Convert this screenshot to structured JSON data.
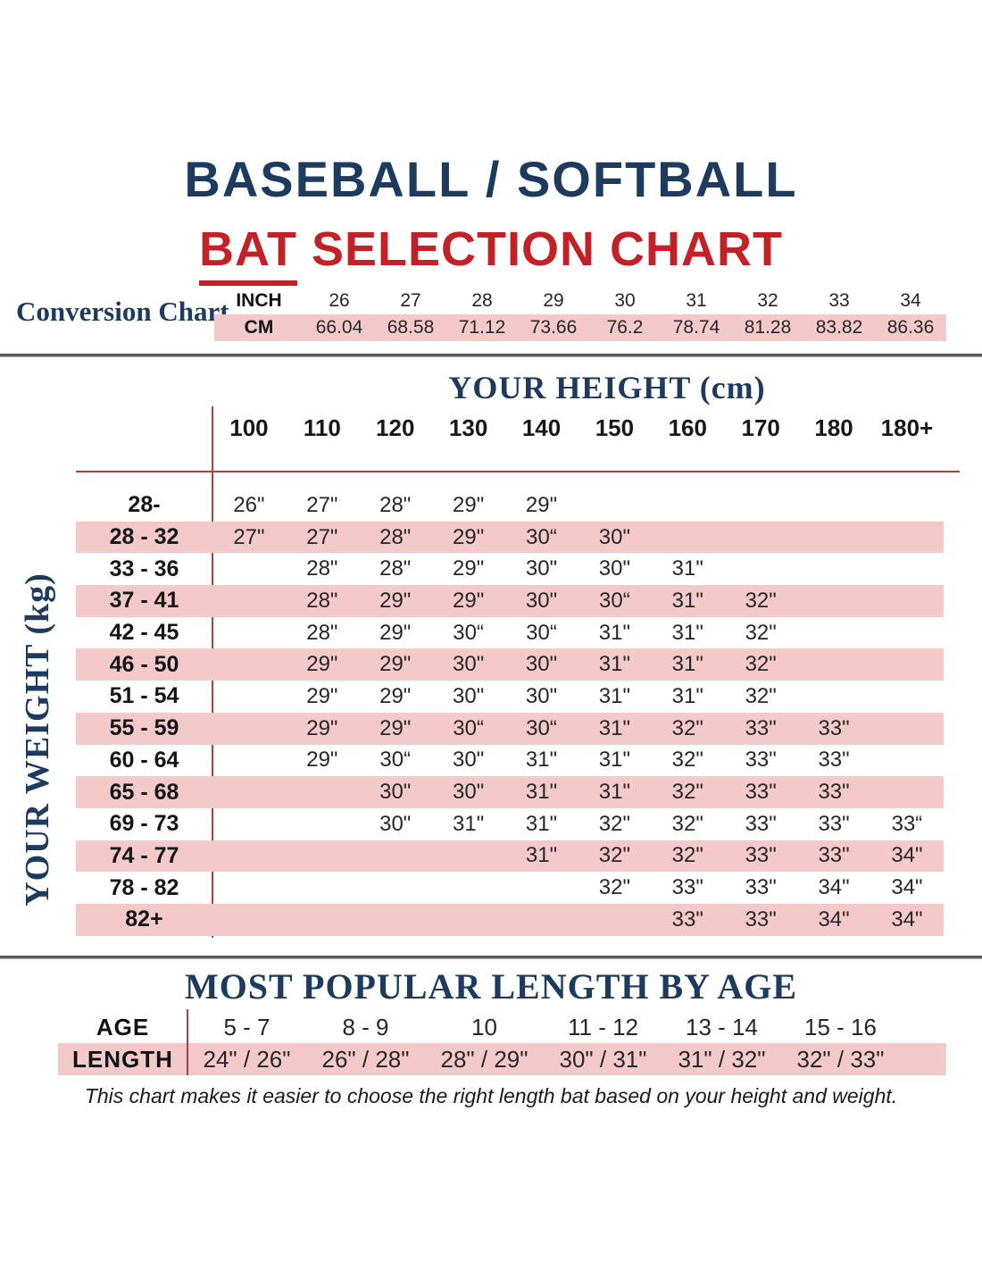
{
  "title": {
    "line1": "BASEBALL / SOFTBALL",
    "bat": "BAT",
    "rest": " SELECTION CHART"
  },
  "footer": "This chart makes it easier to choose the right length bat based on your height and weight.",
  "colors": {
    "navy": "#1d3b5e",
    "red": "#c42127",
    "pink": "#f3c9c9",
    "line_red": "#a84340"
  },
  "chart_data": [
    {
      "type": "table",
      "title": "Conversion Chart",
      "inch_label": "INCH",
      "cm_label": "CM",
      "inches": [
        "26",
        "27",
        "28",
        "29",
        "30",
        "31",
        "32",
        "33",
        "34"
      ],
      "cms": [
        "66.04",
        "68.58",
        "71.12",
        "73.66",
        "76.2",
        "78.74",
        "81.28",
        "83.82",
        "86.36"
      ]
    },
    {
      "type": "table",
      "x_axis_title": "YOUR HEIGHT (cm)",
      "y_axis_title": "YOUR WEIGHT (kg)",
      "columns": [
        "100",
        "110",
        "120",
        "130",
        "140",
        "150",
        "160",
        "170",
        "180",
        "180+"
      ],
      "rows": [
        {
          "label": "28-",
          "cells": [
            "26\"",
            "27\"",
            "28\"",
            "29\"",
            "29\"",
            "",
            "",
            "",
            "",
            ""
          ]
        },
        {
          "label": "28 - 32",
          "cells": [
            "27\"",
            "27\"",
            "28\"",
            "29\"",
            "30“",
            "30\"",
            "",
            "",
            "",
            ""
          ]
        },
        {
          "label": "33 - 36",
          "cells": [
            "",
            "28\"",
            "28\"",
            "29\"",
            "30\"",
            "30\"",
            "31\"",
            "",
            "",
            ""
          ]
        },
        {
          "label": "37 - 41",
          "cells": [
            "",
            "28\"",
            "29\"",
            "29\"",
            "30\"",
            "30“",
            "31\"",
            "32\"",
            "",
            ""
          ]
        },
        {
          "label": "42 - 45",
          "cells": [
            "",
            "28\"",
            "29\"",
            "30“",
            "30“",
            "31\"",
            "31\"",
            "32\"",
            "",
            ""
          ]
        },
        {
          "label": "46 - 50",
          "cells": [
            "",
            "29\"",
            "29\"",
            "30\"",
            "30\"",
            "31\"",
            "31\"",
            "32\"",
            "",
            ""
          ]
        },
        {
          "label": "51 - 54",
          "cells": [
            "",
            "29\"",
            "29\"",
            "30\"",
            "30\"",
            "31\"",
            "31\"",
            "32\"",
            "",
            ""
          ]
        },
        {
          "label": "55 - 59",
          "cells": [
            "",
            "29\"",
            "29\"",
            "30“",
            "30“",
            "31\"",
            "32\"",
            "33\"",
            "33\"",
            ""
          ]
        },
        {
          "label": "60 - 64",
          "cells": [
            "",
            "29\"",
            "30“",
            "30\"",
            "31\"",
            "31\"",
            "32\"",
            "33\"",
            "33\"",
            ""
          ]
        },
        {
          "label": "65 - 68",
          "cells": [
            "",
            "",
            "30\"",
            "30\"",
            "31\"",
            "31\"",
            "32\"",
            "33\"",
            "33\"",
            ""
          ]
        },
        {
          "label": "69 - 73",
          "cells": [
            "",
            "",
            "30\"",
            "31\"",
            "31\"",
            "32\"",
            "32\"",
            "33\"",
            "33\"",
            "33“"
          ]
        },
        {
          "label": "74 - 77",
          "cells": [
            "",
            "",
            "",
            "",
            "31\"",
            "32\"",
            "32\"",
            "33\"",
            "33\"",
            "34\""
          ]
        },
        {
          "label": "78 - 82",
          "cells": [
            "",
            "",
            "",
            "",
            "",
            "32\"",
            "33\"",
            "33\"",
            "34\"",
            "34\""
          ]
        },
        {
          "label": "82+",
          "cells": [
            "",
            "",
            "",
            "",
            "",
            "",
            "33\"",
            "33\"",
            "34\"",
            "34\""
          ]
        }
      ]
    },
    {
      "type": "table",
      "title": "MOST POPULAR LENGTH BY AGE",
      "age_label": "AGE",
      "length_label": "LENGTH",
      "ages": [
        "5 - 7",
        "8 - 9",
        "10",
        "11 - 12",
        "13 - 14",
        "15 - 16"
      ],
      "lengths": [
        "24\" / 26\"",
        "26\" / 28\"",
        "28\" / 29\"",
        "30\" / 31\"",
        "31\" / 32\"",
        "32\" / 33\""
      ]
    }
  ]
}
